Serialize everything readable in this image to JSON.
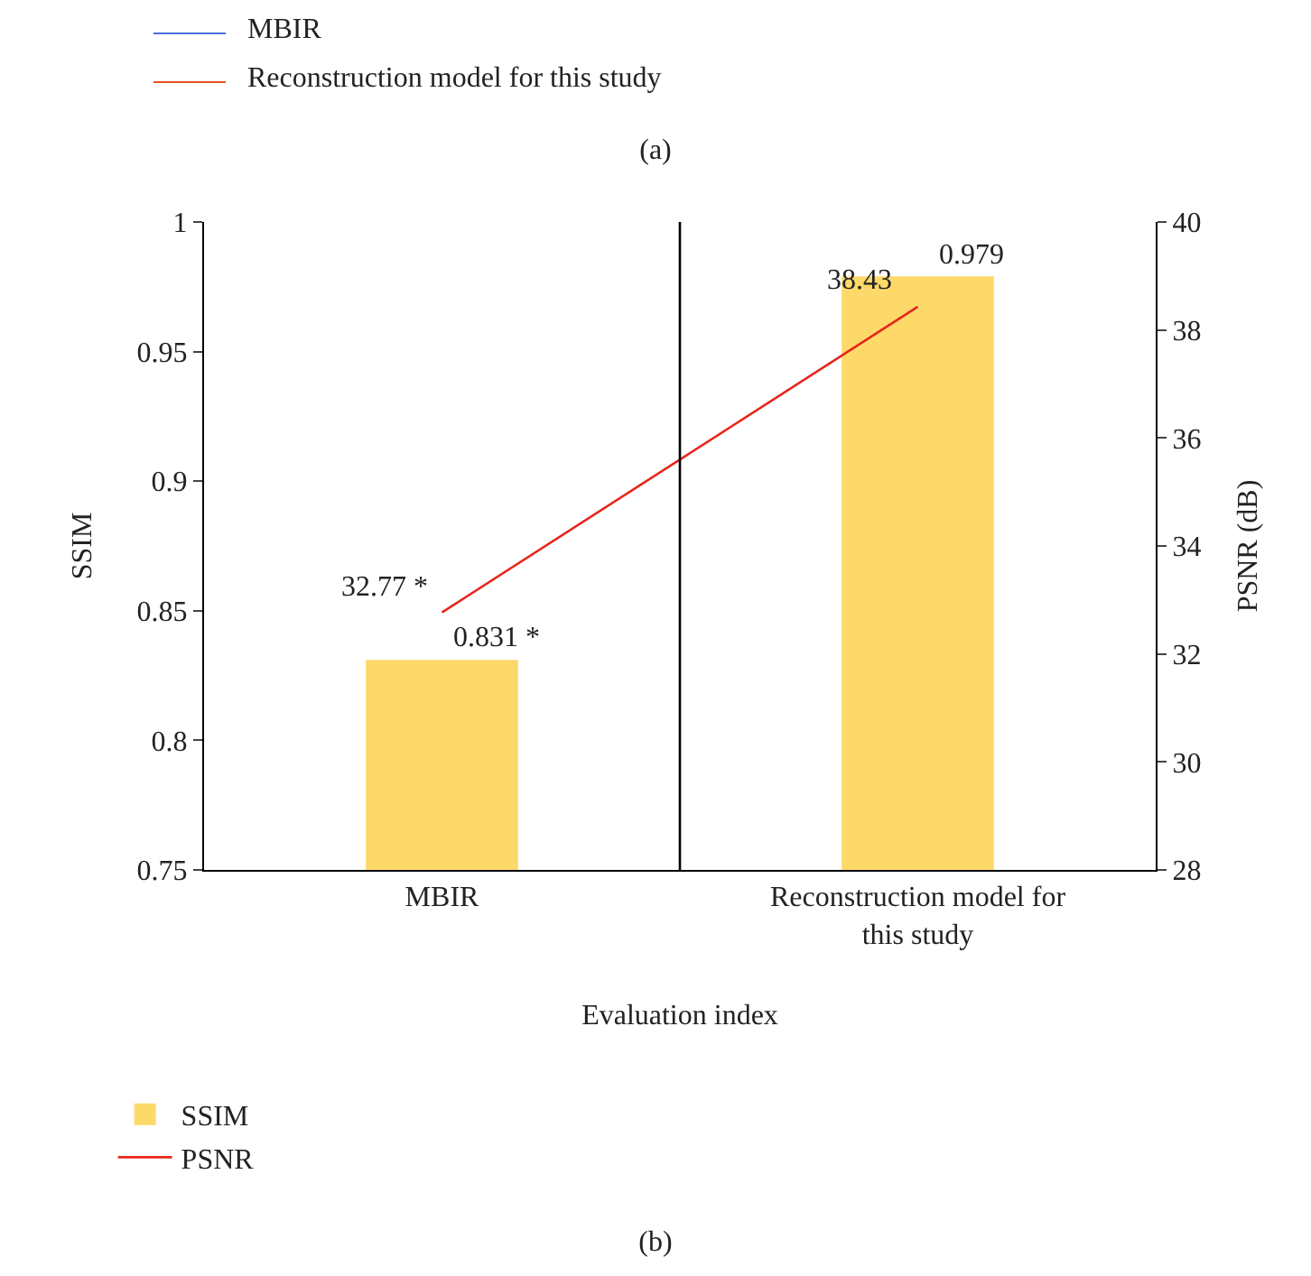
{
  "chart_data": {
    "type": "bar",
    "categories": [
      "MBIR",
      "Reconstruction model for this study"
    ],
    "xlabel": "Evaluation index",
    "ylabel": "SSIM",
    "y2label": "PSNR (dB)",
    "series": [
      {
        "name": "SSIM",
        "color": "#fdd96a",
        "values": [
          0.831,
          0.979
        ],
        "value_labels": [
          "0.831 *",
          "0.979"
        ]
      },
      {
        "name": "PSNR",
        "type": "line",
        "axis": "y2",
        "color": "#e8251b",
        "values": [
          32.77,
          38.43
        ],
        "value_labels": [
          "32.77 *",
          "38.43"
        ]
      }
    ],
    "ylim": [
      0.75,
      1
    ],
    "yticks": [
      0.75,
      0.8,
      0.85,
      0.9,
      0.95,
      1
    ],
    "y2lim": [
      28,
      40
    ],
    "y2ticks": [
      28,
      30,
      32,
      34,
      36,
      38,
      40
    ],
    "legend": "bottom left",
    "grid": false,
    "annotations": [
      "MBIR",
      "Reconstruction model for this study",
      "(a)",
      "(b)"
    ]
  }
}
